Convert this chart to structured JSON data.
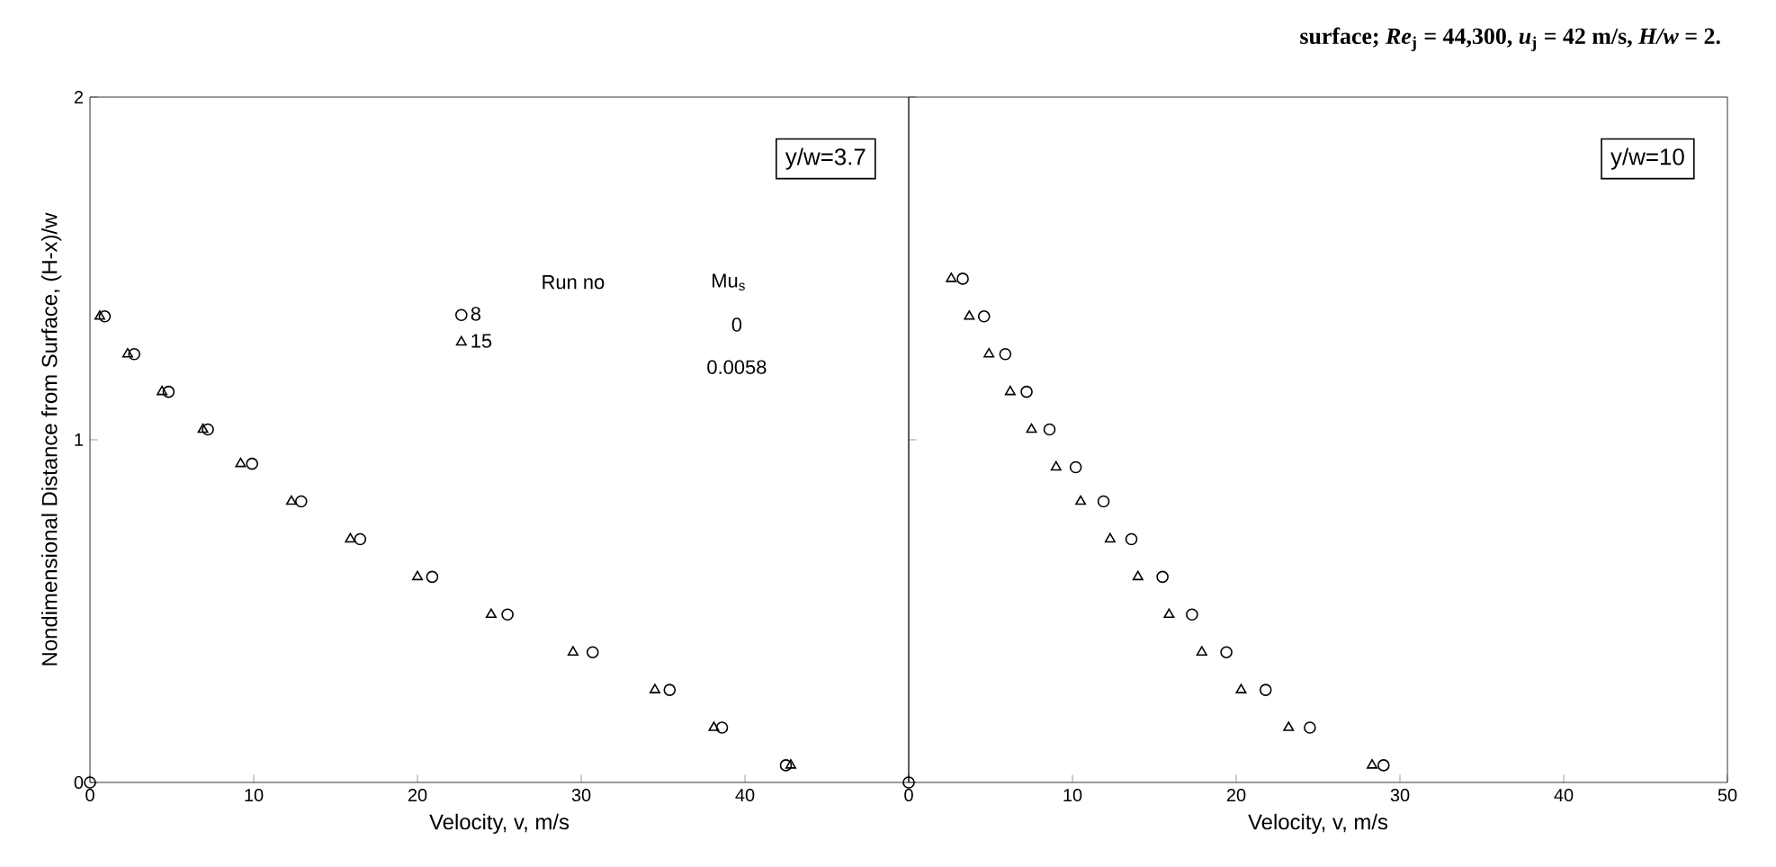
{
  "chart_data": [
    {
      "type": "scatter",
      "title": "y/w=3.7",
      "xlabel": "Velocity, v, m/s",
      "ylabel": "Nondimensional Distance from Surface, (H-x)/w",
      "xlim": [
        0,
        50
      ],
      "ylim": [
        0,
        2
      ],
      "xticks": [
        0,
        10,
        20,
        30,
        40,
        {
          "value": 50,
          "label": null
        }
      ],
      "yticks": [
        0,
        1,
        2
      ],
      "legend": "top",
      "legend_title": "Run no",
      "annotations": [
        "Mu$_{s}$",
        "0",
        "0.0058"
      ],
      "series": [
        {
          "name": "8",
          "color": "#000000",
          "marker": "circle",
          "x": [
            0,
            0.9,
            2.7,
            4.8,
            7.2,
            9.9,
            12.9,
            16.5,
            20.9,
            25.5,
            30.7,
            35.4,
            38.6,
            42.5
          ],
          "values": [
            0,
            1.36,
            1.25,
            1.14,
            1.03,
            0.93,
            0.82,
            0.71,
            0.6,
            0.49,
            0.38,
            0.27,
            0.16,
            0.05
          ]
        },
        {
          "name": "15",
          "color": "#000000",
          "marker": "triangle",
          "x": [
            0.6,
            2.3,
            4.4,
            6.9,
            9.2,
            12.3,
            15.9,
            20.0,
            24.5,
            29.5,
            34.5,
            38.1,
            42.8
          ],
          "values": [
            1.36,
            1.25,
            1.14,
            1.03,
            0.93,
            0.82,
            0.71,
            0.6,
            0.49,
            0.38,
            0.27,
            0.16,
            0.05
          ]
        }
      ]
    },
    {
      "type": "scatter",
      "title": "y/w=10",
      "xlabel": "Velocity, v, m/s",
      "xlim": [
        0,
        50
      ],
      "ylim": [
        0,
        2
      ],
      "xticks": [
        0,
        10,
        20,
        30,
        40,
        50
      ],
      "yticks": [
        0,
        1,
        2
      ],
      "tick_labels": "x",
      "annotations": [
        "surface; *Re*$_{j}$ = 44,300, *u*$_{j}$ = 42 m/s, *H/w* = 2."
      ],
      "series": [
        {
          "color": "#000000",
          "marker": "circle",
          "x": [
            0,
            3.3,
            4.6,
            5.9,
            7.2,
            8.6,
            10.2,
            11.9,
            13.6,
            15.5,
            17.3,
            19.4,
            21.8,
            24.5,
            29.0
          ],
          "values": [
            0,
            1.47,
            1.36,
            1.25,
            1.14,
            1.03,
            0.92,
            0.82,
            0.71,
            0.6,
            0.49,
            0.38,
            0.27,
            0.16,
            0.05
          ]
        },
        {
          "color": "#000000",
          "marker": "triangle",
          "x": [
            2.6,
            3.7,
            4.9,
            6.2,
            7.5,
            9.0,
            10.5,
            12.3,
            14.0,
            15.9,
            17.9,
            20.3,
            23.2,
            28.3
          ],
          "values": [
            1.47,
            1.36,
            1.25,
            1.14,
            1.03,
            0.92,
            0.82,
            0.71,
            0.6,
            0.49,
            0.38,
            0.27,
            0.16,
            0.05
          ]
        }
      ]
    }
  ]
}
